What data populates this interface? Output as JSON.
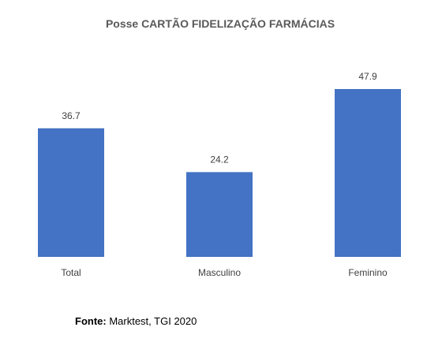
{
  "chart_data": {
    "type": "bar",
    "title": "Posse CARTÃO FIDELIZAÇÃO FARMÁCIAS",
    "categories": [
      "Total",
      "Masculino",
      "Feminino"
    ],
    "values": [
      36.7,
      24.2,
      47.9
    ],
    "data_labels": [
      "36.7",
      "24.2",
      "47.9"
    ],
    "xlabel": "",
    "ylabel": "",
    "ylim": [
      0,
      48
    ],
    "grid": false,
    "legend": "none",
    "bar_color": "#4472C4"
  },
  "source": {
    "label": "Fonte:",
    "text": " Marktest, TGI 2020"
  }
}
